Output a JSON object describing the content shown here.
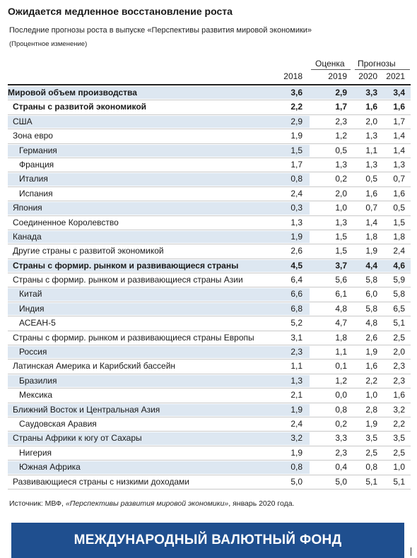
{
  "title": "Ожидается медленное восстановление роста",
  "subtitle": "Последние прогнозы роста в выпуске «Перспективы развития мировой экономики»",
  "unit": "(Процентное изменение)",
  "header": {
    "estimate_label": "Оценка",
    "forecast_label": "Прогнозы",
    "years": [
      "2018",
      "2019",
      "2020",
      "2021"
    ]
  },
  "source": {
    "prefix": "Источник: МВФ, ",
    "italic": "«Перспективы развития мировой экономики»",
    "suffix": ", январь 2020 года."
  },
  "footer": "МЕЖДУНАРОДНЫЙ ВАЛЮТНЫЙ ФОНД",
  "colors": {
    "row_shade": "#dde7f1",
    "footer_bg": "#1f4f8f"
  },
  "chart_data": {
    "type": "table",
    "title": "Ожидается медленное восстановление роста",
    "columns": [
      "2018",
      "2019",
      "2020",
      "2021"
    ],
    "rows": [
      {
        "label": "Мировой объем производства",
        "values": [
          "3,6",
          "2,9",
          "3,3",
          "3,4"
        ],
        "bold": true,
        "indent": 0,
        "shaded": true
      },
      {
        "label": "Страны с развитой экономикой",
        "values": [
          "2,2",
          "1,7",
          "1,6",
          "1,6"
        ],
        "bold": true,
        "indent": 1,
        "shaded": false
      },
      {
        "label": "США",
        "values": [
          "2,9",
          "2,3",
          "2,0",
          "1,7"
        ],
        "bold": false,
        "indent": 1,
        "shaded": true
      },
      {
        "label": "Зона евро",
        "values": [
          "1,9",
          "1,2",
          "1,3",
          "1,4"
        ],
        "bold": false,
        "indent": 1,
        "shaded": false
      },
      {
        "label": "Германия",
        "values": [
          "1,5",
          "0,5",
          "1,1",
          "1,4"
        ],
        "bold": false,
        "indent": 2,
        "shaded": true
      },
      {
        "label": "Франция",
        "values": [
          "1,7",
          "1,3",
          "1,3",
          "1,3"
        ],
        "bold": false,
        "indent": 2,
        "shaded": false
      },
      {
        "label": "Италия",
        "values": [
          "0,8",
          "0,2",
          "0,5",
          "0,7"
        ],
        "bold": false,
        "indent": 2,
        "shaded": true
      },
      {
        "label": "Испания",
        "values": [
          "2,4",
          "2,0",
          "1,6",
          "1,6"
        ],
        "bold": false,
        "indent": 2,
        "shaded": false
      },
      {
        "label": "Япония",
        "values": [
          "0,3",
          "1,0",
          "0,7",
          "0,5"
        ],
        "bold": false,
        "indent": 1,
        "shaded": true
      },
      {
        "label": "Соединенное Королевство",
        "values": [
          "1,3",
          "1,3",
          "1,4",
          "1,5"
        ],
        "bold": false,
        "indent": 1,
        "shaded": false
      },
      {
        "label": "Канада",
        "values": [
          "1,9",
          "1,5",
          "1,8",
          "1,8"
        ],
        "bold": false,
        "indent": 1,
        "shaded": true
      },
      {
        "label": "Другие страны с развитой экономикой",
        "values": [
          "2,6",
          "1,5",
          "1,9",
          "2,4"
        ],
        "bold": false,
        "indent": 1,
        "shaded": false
      },
      {
        "label": "Страны с формир. рынком и развивающиеся страны",
        "values": [
          "4,5",
          "3,7",
          "4,4",
          "4,6"
        ],
        "bold": true,
        "indent": 1,
        "shaded": true
      },
      {
        "label": "Страны с формир. рынком и развивающиеся страны Азии",
        "values": [
          "6,4",
          "5,6",
          "5,8",
          "5,9"
        ],
        "bold": false,
        "indent": 1,
        "shaded": false
      },
      {
        "label": "Китай",
        "values": [
          "6,6",
          "6,1",
          "6,0",
          "5,8"
        ],
        "bold": false,
        "indent": 2,
        "shaded": true
      },
      {
        "label": "Индия",
        "values": [
          "6,8",
          "4,8",
          "5,8",
          "6,5"
        ],
        "bold": false,
        "indent": 2,
        "shaded": true
      },
      {
        "label": "АСЕАН-5",
        "values": [
          "5,2",
          "4,7",
          "4,8",
          "5,1"
        ],
        "bold": false,
        "indent": 2,
        "shaded": false
      },
      {
        "label": "Страны с формир. рынком и развивающиеся страны Европы",
        "values": [
          "3,1",
          "1,8",
          "2,6",
          "2,5"
        ],
        "bold": false,
        "indent": 1,
        "shaded": false
      },
      {
        "label": "Россия",
        "values": [
          "2,3",
          "1,1",
          "1,9",
          "2,0"
        ],
        "bold": false,
        "indent": 2,
        "shaded": true
      },
      {
        "label": "Латинская Америка и Карибский бассейн",
        "values": [
          "1,1",
          "0,1",
          "1,6",
          "2,3"
        ],
        "bold": false,
        "indent": 1,
        "shaded": false
      },
      {
        "label": "Бразилия",
        "values": [
          "1,3",
          "1,2",
          "2,2",
          "2,3"
        ],
        "bold": false,
        "indent": 2,
        "shaded": true
      },
      {
        "label": "Мексика",
        "values": [
          "2,1",
          "0,0",
          "1,0",
          "1,6"
        ],
        "bold": false,
        "indent": 2,
        "shaded": false
      },
      {
        "label": "Ближний Восток и Центральная Азия",
        "values": [
          "1,9",
          "0,8",
          "2,8",
          "3,2"
        ],
        "bold": false,
        "indent": 1,
        "shaded": true
      },
      {
        "label": "Саудовская Аравия",
        "values": [
          "2,4",
          "0,2",
          "1,9",
          "2,2"
        ],
        "bold": false,
        "indent": 2,
        "shaded": false
      },
      {
        "label": "Страны Африки к югу от Сахары",
        "values": [
          "3,2",
          "3,3",
          "3,5",
          "3,5"
        ],
        "bold": false,
        "indent": 1,
        "shaded": true
      },
      {
        "label": "Нигерия",
        "values": [
          "1,9",
          "2,3",
          "2,5",
          "2,5"
        ],
        "bold": false,
        "indent": 2,
        "shaded": false
      },
      {
        "label": "Южная Африка",
        "values": [
          "0,8",
          "0,4",
          "0,8",
          "1,0"
        ],
        "bold": false,
        "indent": 2,
        "shaded": true
      },
      {
        "label": "Развивающиеся страны с низкими доходами",
        "values": [
          "5,0",
          "5,0",
          "5,1",
          "5,1"
        ],
        "bold": false,
        "indent": 1,
        "shaded": false
      }
    ]
  }
}
